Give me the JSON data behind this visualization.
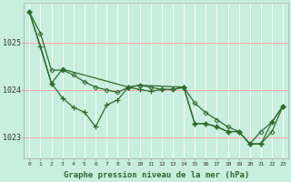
{
  "background_color": "#c8eedd",
  "grid_color": "#ff9999",
  "line_color": "#2d6b2d",
  "xlabel": "Graphe pression niveau de la mer (hPa)",
  "ylim": [
    1022.55,
    1025.85
  ],
  "xlim": [
    -0.5,
    23.5
  ],
  "yticks": [
    1023,
    1024,
    1025
  ],
  "series1_x": [
    0,
    1,
    2,
    3,
    4,
    5,
    6,
    7,
    8,
    9,
    10,
    11,
    12,
    13,
    14,
    15,
    16,
    17,
    18,
    19,
    20,
    21,
    22,
    23
  ],
  "series1_y": [
    1025.65,
    1025.2,
    1024.42,
    1024.42,
    1024.32,
    1024.17,
    1024.06,
    1024.0,
    1023.95,
    1024.06,
    1024.1,
    1024.06,
    1024.01,
    1024.01,
    1024.06,
    1023.72,
    1023.52,
    1023.37,
    1023.22,
    1023.12,
    1022.86,
    1022.86,
    1023.12,
    1023.66
  ],
  "series2_x": [
    0,
    1,
    2,
    3,
    4,
    5,
    6,
    7,
    8,
    9,
    10,
    11,
    12,
    13,
    14,
    15,
    16,
    17,
    18,
    19,
    20,
    21,
    22,
    23
  ],
  "series2_y": [
    1025.65,
    1024.93,
    1024.14,
    1023.83,
    1023.63,
    1023.53,
    1023.22,
    1023.68,
    1023.79,
    1024.06,
    1024.01,
    1023.97,
    1024.01,
    1024.01,
    1024.06,
    1023.29,
    1023.29,
    1023.22,
    1023.12,
    1023.12,
    1022.86,
    1022.86,
    1023.32,
    1023.66
  ],
  "series3_x": [
    0,
    2,
    3,
    9,
    10,
    14,
    15,
    16,
    17,
    18,
    19,
    20,
    21,
    22,
    23
  ],
  "series3_y": [
    1025.65,
    1024.14,
    1024.44,
    1024.06,
    1024.1,
    1024.06,
    1023.29,
    1023.29,
    1023.22,
    1023.12,
    1023.12,
    1022.86,
    1023.12,
    1023.32,
    1023.66
  ]
}
